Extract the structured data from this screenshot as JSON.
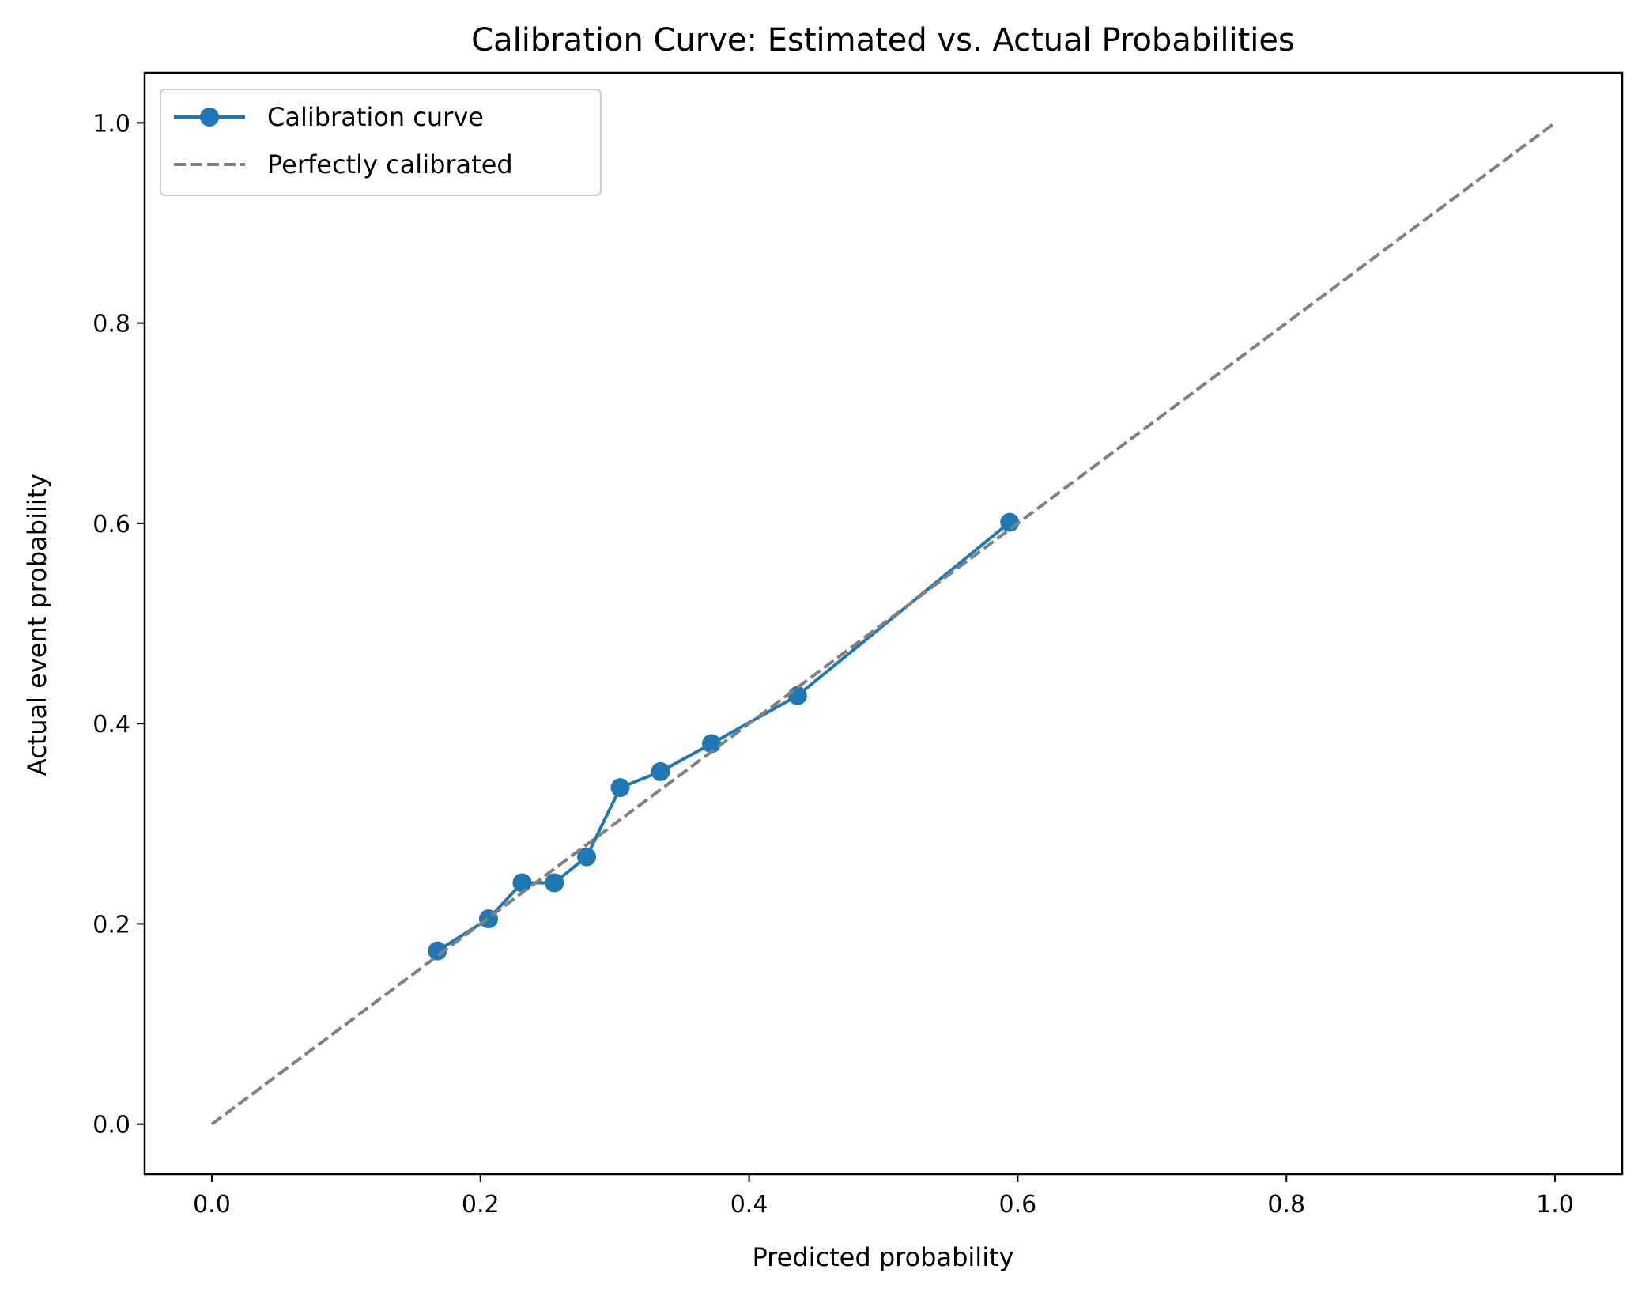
{
  "chart_data": {
    "type": "line",
    "title": "Calibration Curve: Estimated vs. Actual Probabilities",
    "xlabel": "Predicted probability",
    "ylabel": "Actual event probability",
    "xlim": [
      -0.05,
      1.05
    ],
    "ylim": [
      -0.05,
      1.05
    ],
    "xticks": [
      "0.0",
      "0.2",
      "0.4",
      "0.6",
      "0.8",
      "1.0"
    ],
    "yticks": [
      "0.0",
      "0.2",
      "0.4",
      "0.6",
      "0.8",
      "1.0"
    ],
    "grid": false,
    "legend_position": "upper-left",
    "series": [
      {
        "name": "Calibration curve",
        "style": "solid-with-markers",
        "color": "#1f77b4",
        "x": [
          0.168,
          0.206,
          0.231,
          0.255,
          0.279,
          0.304,
          0.334,
          0.372,
          0.436,
          0.594
        ],
        "y": [
          0.173,
          0.205,
          0.241,
          0.241,
          0.267,
          0.336,
          0.352,
          0.38,
          0.428,
          0.601
        ]
      },
      {
        "name": "Perfectly calibrated",
        "style": "dashed",
        "color": "#808080",
        "x": [
          0.0,
          1.0
        ],
        "y": [
          0.0,
          1.0
        ]
      }
    ]
  }
}
